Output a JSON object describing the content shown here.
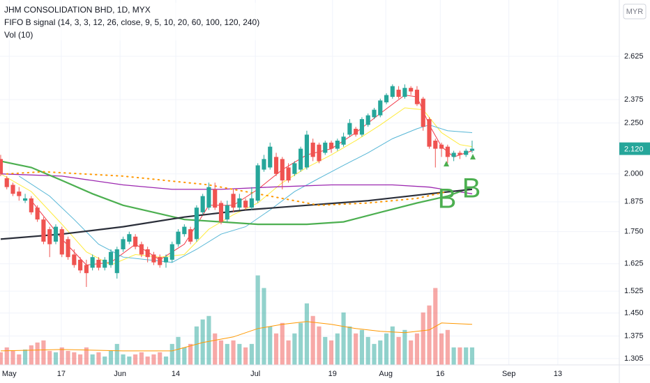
{
  "chart_data": {
    "type": "candlestick",
    "title": "JHM CONSOLIDATION BHD, 1D, MYX",
    "subtitle": "FIFO B signal (14, 3, 3, 12, 26, close, 9, 5, 10, 20, 60, 100, 120, 240)",
    "volume_label": "Vol (10)",
    "currency": "MYR",
    "log": true,
    "grid": true,
    "up_color": "#26a69a",
    "down_color": "#ef5350",
    "xlim": [
      -0.11,
      101.04
    ],
    "xticks": [
      {
        "value": 1.4,
        "label": "May"
      },
      {
        "value": 9.9,
        "label": "17"
      },
      {
        "value": 19.5,
        "label": "Jun"
      },
      {
        "value": 28.6,
        "label": "14"
      },
      {
        "value": 41.6,
        "label": "Jul"
      },
      {
        "value": 54.2,
        "label": "19"
      },
      {
        "value": 62.9,
        "label": "Aug"
      },
      {
        "value": 71.8,
        "label": "16"
      },
      {
        "value": 83.0,
        "label": "Sep"
      },
      {
        "value": 91.0,
        "label": "13"
      }
    ],
    "ylim": [
      1.286,
      2.99
    ],
    "yticks": [
      2.625,
      2.375,
      {
        "value": 2.25,
        "label": "2.250"
      },
      {
        "value": 2.0,
        "label": "2.000"
      },
      1.875,
      {
        "value": 1.75,
        "label": "1.750"
      },
      1.625,
      1.525,
      {
        "value": 1.45,
        "label": "1.450"
      },
      1.375,
      1.305
    ],
    "open": [
      2.07,
      1.98,
      1.95,
      1.92,
      1.88,
      1.89,
      1.85,
      1.8,
      1.76,
      1.71,
      1.76,
      1.72,
      1.66,
      1.64,
      1.62,
      1.61,
      1.64,
      1.61,
      1.62,
      1.59,
      1.68,
      1.71,
      1.73,
      1.7,
      1.68,
      1.66,
      1.65,
      1.63,
      1.64,
      1.7,
      1.74,
      1.76,
      1.72,
      1.83,
      1.85,
      1.93,
      1.87,
      1.8,
      1.91,
      1.85,
      1.88,
      1.85,
      1.88,
      2.02,
      2.03,
      2.08,
      2.07,
      2.03,
      2.0,
      2.02,
      2.03,
      2.15,
      2.14,
      2.1,
      2.15,
      2.12,
      2.14,
      2.19,
      2.22,
      2.19,
      2.24,
      2.28,
      2.29,
      2.36,
      2.39,
      2.43,
      2.39,
      2.44,
      2.43,
      2.38,
      2.27,
      2.16,
      2.14,
      2.13,
      2.08,
      2.1,
      2.09,
      2.11
    ],
    "high": [
      2.09,
      1.99,
      1.96,
      1.94,
      1.91,
      1.9,
      1.86,
      1.81,
      1.77,
      1.78,
      1.77,
      1.73,
      1.68,
      1.65,
      1.64,
      1.66,
      1.65,
      1.65,
      1.68,
      1.69,
      1.73,
      1.75,
      1.74,
      1.71,
      1.69,
      1.67,
      1.66,
      1.66,
      1.71,
      1.76,
      1.78,
      1.77,
      1.86,
      1.91,
      1.96,
      1.96,
      1.88,
      1.88,
      1.93,
      1.91,
      1.89,
      1.94,
      2.05,
      2.09,
      2.15,
      2.1,
      2.08,
      2.05,
      2.06,
      2.13,
      2.21,
      2.17,
      2.15,
      2.16,
      2.16,
      2.17,
      2.2,
      2.27,
      2.23,
      2.28,
      2.3,
      2.33,
      2.38,
      2.41,
      2.46,
      2.45,
      2.46,
      2.45,
      2.45,
      2.39,
      2.28,
      2.17,
      2.15,
      2.14,
      2.11,
      2.11,
      2.12,
      2.16
    ],
    "low": [
      1.99,
      1.93,
      1.9,
      1.88,
      1.87,
      1.82,
      1.79,
      1.7,
      1.65,
      1.7,
      1.65,
      1.64,
      1.61,
      1.59,
      1.54,
      1.6,
      1.6,
      1.6,
      1.61,
      1.57,
      1.67,
      1.7,
      1.68,
      1.65,
      1.63,
      1.62,
      1.61,
      1.61,
      1.63,
      1.69,
      1.73,
      1.7,
      1.71,
      1.82,
      1.84,
      1.84,
      1.78,
      1.79,
      1.83,
      1.84,
      1.84,
      1.84,
      1.87,
      2.01,
      2.02,
      1.99,
      1.93,
      1.96,
      1.99,
      2.01,
      2.02,
      2.06,
      2.05,
      2.09,
      2.1,
      2.11,
      2.13,
      2.18,
      2.18,
      2.18,
      2.23,
      2.27,
      2.28,
      2.35,
      2.38,
      2.38,
      2.38,
      2.4,
      2.34,
      2.21,
      2.12,
      2.03,
      2.08,
      2.05,
      2.06,
      2.07,
      2.08,
      2.1
    ],
    "close": [
      2.0,
      1.94,
      1.91,
      1.9,
      1.89,
      1.83,
      1.8,
      1.71,
      1.7,
      1.77,
      1.66,
      1.65,
      1.62,
      1.6,
      1.59,
      1.65,
      1.61,
      1.64,
      1.67,
      1.68,
      1.72,
      1.74,
      1.69,
      1.66,
      1.65,
      1.63,
      1.62,
      1.65,
      1.7,
      1.75,
      1.77,
      1.71,
      1.85,
      1.9,
      1.94,
      1.85,
      1.79,
      1.86,
      1.85,
      1.89,
      1.85,
      1.89,
      2.04,
      2.07,
      2.13,
      2.0,
      1.97,
      1.97,
      2.05,
      2.12,
      2.19,
      2.08,
      2.06,
      2.15,
      2.12,
      2.16,
      2.18,
      2.25,
      2.19,
      2.27,
      2.29,
      2.32,
      2.37,
      2.4,
      2.45,
      2.39,
      2.44,
      2.42,
      2.35,
      2.23,
      2.13,
      2.12,
      2.12,
      2.08,
      2.1,
      2.09,
      2.11,
      2.12
    ],
    "volume": [
      18,
      25,
      20,
      15,
      22,
      28,
      32,
      35,
      20,
      18,
      25,
      20,
      18,
      15,
      25,
      15,
      18,
      12,
      20,
      30,
      15,
      12,
      15,
      18,
      12,
      15,
      18,
      12,
      30,
      40,
      25,
      30,
      55,
      65,
      70,
      45,
      35,
      30,
      35,
      30,
      25,
      30,
      128,
      110,
      55,
      45,
      60,
      35,
      45,
      60,
      88,
      70,
      55,
      40,
      35,
      45,
      75,
      55,
      45,
      50,
      40,
      30,
      35,
      45,
      55,
      40,
      50,
      35,
      45,
      75,
      85,
      110,
      45,
      50,
      25,
      25,
      25,
      25
    ],
    "volume_lim": [
      0,
      522
    ],
    "volume_ma": {
      "color": "#ff9800",
      "x": [
        0,
        10,
        20,
        28,
        33,
        38,
        42,
        46,
        50,
        54,
        58,
        62,
        66,
        70,
        72,
        77
      ],
      "values": [
        20,
        22,
        20,
        20,
        32,
        40,
        52,
        58,
        62,
        58,
        52,
        48,
        46,
        50,
        60,
        58
      ]
    },
    "lines": [
      {
        "color": "#f23645",
        "width": 1,
        "x": [
          5,
          10,
          14,
          18,
          22,
          26,
          30,
          34,
          38,
          42,
          46,
          50,
          54,
          58,
          62,
          66,
          68,
          70,
          72,
          74,
          77
        ],
        "values": [
          1.88,
          1.72,
          1.62,
          1.63,
          1.7,
          1.64,
          1.7,
          1.86,
          1.86,
          1.93,
          2.02,
          2.09,
          2.12,
          2.2,
          2.3,
          2.4,
          2.39,
          2.24,
          2.13,
          2.08,
          2.11
        ]
      },
      {
        "color": "#ffeb3b",
        "width": 1,
        "x": [
          0,
          5,
          10,
          14,
          18,
          22,
          26,
          30,
          34,
          38,
          42,
          46,
          50,
          54,
          58,
          62,
          66,
          69,
          72,
          75,
          77
        ],
        "values": [
          2.0,
          1.92,
          1.78,
          1.67,
          1.62,
          1.66,
          1.65,
          1.66,
          1.76,
          1.82,
          1.87,
          1.96,
          2.03,
          2.09,
          2.16,
          2.24,
          2.33,
          2.32,
          2.2,
          2.14,
          2.13
        ]
      },
      {
        "color": "#56b6d6",
        "width": 1,
        "x": [
          3,
          8,
          12,
          16,
          20,
          24,
          28,
          32,
          36,
          40,
          44,
          48,
          52,
          56,
          60,
          64,
          68,
          70,
          73,
          77
        ],
        "values": [
          1.99,
          1.9,
          1.8,
          1.7,
          1.65,
          1.64,
          1.63,
          1.68,
          1.74,
          1.77,
          1.84,
          1.92,
          1.98,
          2.04,
          2.1,
          2.17,
          2.22,
          2.24,
          2.21,
          2.2
        ]
      },
      {
        "color": "#9c27b0",
        "width": 1.3,
        "x": [
          0,
          10,
          20,
          28,
          36,
          44,
          54,
          64,
          70,
          77
        ],
        "values": [
          2.0,
          1.99,
          1.95,
          1.93,
          1.93,
          1.94,
          1.95,
          1.95,
          1.94,
          1.91
        ]
      },
      {
        "color": "#4caf50",
        "width": 2.2,
        "x": [
          0,
          5,
          10,
          15,
          20,
          25,
          30,
          36,
          42,
          50,
          56,
          62,
          68,
          73,
          77
        ],
        "values": [
          2.06,
          2.03,
          1.97,
          1.91,
          1.86,
          1.83,
          1.8,
          1.79,
          1.78,
          1.78,
          1.79,
          1.83,
          1.87,
          1.9,
          1.94
        ]
      },
      {
        "color": "#2a2e39",
        "width": 2.2,
        "x": [
          0,
          10,
          20,
          30,
          40,
          50,
          60,
          70,
          77
        ],
        "values": [
          1.72,
          1.74,
          1.77,
          1.81,
          1.84,
          1.86,
          1.88,
          1.91,
          1.93
        ]
      },
      {
        "color": "#ff9800",
        "width": 2,
        "dotted": true,
        "x": [
          1,
          7,
          20,
          34,
          44,
          52,
          60,
          68,
          73
        ],
        "values": [
          2.0,
          2.01,
          1.99,
          1.95,
          1.9,
          1.86,
          1.87,
          1.89,
          1.92
        ]
      }
    ],
    "last_price": {
      "value": 2.12,
      "label": "2.120"
    },
    "annotations": [
      "B",
      "B"
    ]
  }
}
